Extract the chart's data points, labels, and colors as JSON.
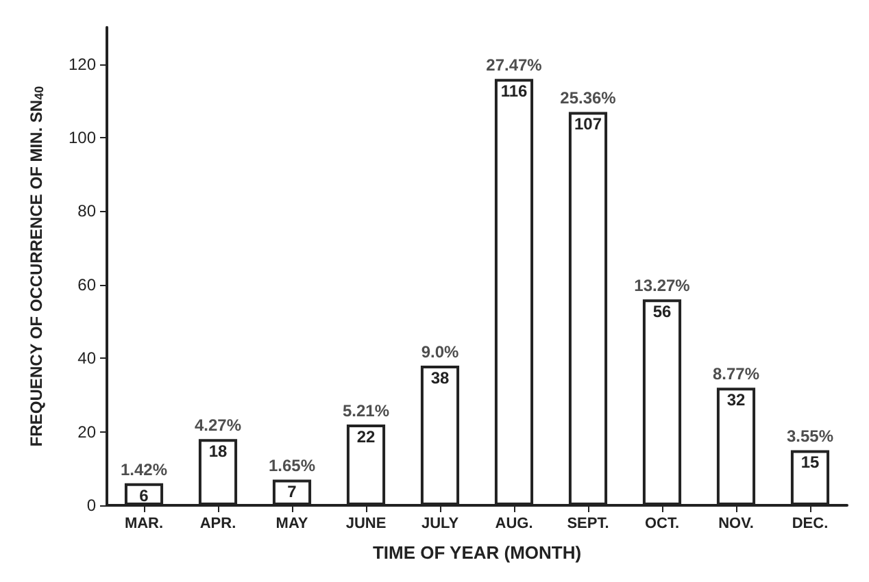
{
  "chart_data": {
    "type": "bar",
    "xlabel": "TIME OF YEAR (MONTH)",
    "ylabel": "FREQUENCY OF OCCURRENCE OF MIN. SN$_{40}$",
    "categories": [
      "MAR.",
      "APR.",
      "MAY",
      "JUNE",
      "JULY",
      "AUG.",
      "SEPT.",
      "OCT.",
      "NOV.",
      "DEC."
    ],
    "values": [
      6,
      18,
      7,
      22,
      38,
      116,
      107,
      56,
      32,
      15
    ],
    "color": "#ffffff",
    "value_labels": [
      "6",
      "18",
      "7",
      "22",
      "38",
      "116",
      "107",
      "56",
      "32",
      "15"
    ],
    "annotations": [
      {
        "text": "1.42%",
        "x": "MAR.",
        "y": 6
      },
      {
        "text": "4.27%",
        "x": "APR.",
        "y": 18
      },
      {
        "text": "1.65%",
        "x": "MAY",
        "y": 7
      },
      {
        "text": "5.21%",
        "x": "JUNE",
        "y": 22
      },
      {
        "text": "9.0%",
        "x": "JULY",
        "y": 38
      },
      {
        "text": "27.47%",
        "x": "AUG.",
        "y": 116
      },
      {
        "text": "25.36%",
        "x": "SEPT.",
        "y": 107
      },
      {
        "text": "13.27%",
        "x": "OCT.",
        "y": 56
      },
      {
        "text": "8.77%",
        "x": "NOV.",
        "y": 32
      },
      {
        "text": "3.55%",
        "x": "DEC.",
        "y": 15
      }
    ],
    "ylim": [
      0,
      130
    ],
    "yticks": [
      0,
      20,
      40,
      60,
      80,
      100,
      120
    ],
    "grid": false
  }
}
